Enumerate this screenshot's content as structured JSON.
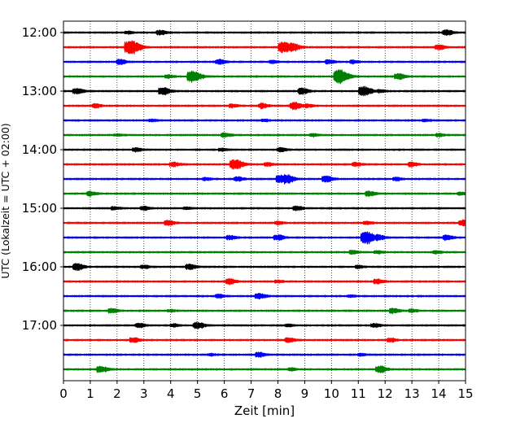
{
  "chart_data": {
    "type": "line",
    "title": "",
    "xlabel": "Zeit  [min]",
    "ylabel": "UTC (Lokalzeit = UTC + 02:00)",
    "xlim": [
      0,
      15
    ],
    "x_ticks": [
      0,
      1,
      2,
      3,
      4,
      5,
      6,
      7,
      8,
      9,
      10,
      11,
      12,
      13,
      14,
      15
    ],
    "y_tick_labels": [
      "12:00",
      "13:00",
      "14:00",
      "15:00",
      "16:00",
      "17:00"
    ],
    "grid": "vertical dotted",
    "legend": "none",
    "trace_colors": [
      "#000000",
      "#ff0000",
      "#0000ff",
      "#008000"
    ],
    "trace_interval_min": 15,
    "series": [
      {
        "start": "12:00",
        "color": "#000000",
        "events": [
          [
            3.6,
            0.7
          ],
          [
            14.3,
            0.9
          ],
          [
            2.4,
            0.4
          ]
        ]
      },
      {
        "start": "12:15",
        "color": "#ff0000",
        "events": [
          [
            2.5,
            2.4
          ],
          [
            8.2,
            1.8
          ],
          [
            8.6,
            0.9
          ],
          [
            14.0,
            0.7
          ]
        ]
      },
      {
        "start": "12:30",
        "color": "#0000ff",
        "events": [
          [
            2.1,
            0.8
          ],
          [
            5.8,
            0.8
          ],
          [
            9.9,
            0.6
          ],
          [
            10.8,
            0.5
          ],
          [
            7.8,
            0.4
          ]
        ]
      },
      {
        "start": "12:45",
        "color": "#008000",
        "events": [
          [
            4.8,
            1.9
          ],
          [
            10.3,
            2.3
          ],
          [
            12.5,
            0.9
          ],
          [
            3.9,
            0.5
          ]
        ]
      },
      {
        "start": "13:00",
        "color": "#000000",
        "events": [
          [
            0.5,
            0.9
          ],
          [
            3.7,
            1.2
          ],
          [
            8.9,
            1.0
          ],
          [
            11.2,
            1.6
          ],
          [
            11.8,
            0.4
          ]
        ]
      },
      {
        "start": "13:15",
        "color": "#ff0000",
        "events": [
          [
            1.2,
            0.6
          ],
          [
            6.3,
            0.5
          ],
          [
            7.4,
            0.8
          ],
          [
            8.6,
            1.2
          ],
          [
            9.1,
            0.5
          ]
        ]
      },
      {
        "start": "13:30",
        "color": "#0000ff",
        "events": [
          [
            3.3,
            0.3
          ],
          [
            7.5,
            0.3
          ],
          [
            13.5,
            0.3
          ]
        ]
      },
      {
        "start": "13:45",
        "color": "#008000",
        "events": [
          [
            6.0,
            0.6
          ],
          [
            9.3,
            0.4
          ],
          [
            14.0,
            0.5
          ],
          [
            2.0,
            0.3
          ]
        ]
      },
      {
        "start": "14:00",
        "color": "#000000",
        "events": [
          [
            2.7,
            0.6
          ],
          [
            5.9,
            0.4
          ],
          [
            8.1,
            0.6
          ]
        ]
      },
      {
        "start": "14:15",
        "color": "#ff0000",
        "events": [
          [
            4.1,
            0.7
          ],
          [
            6.4,
            1.6
          ],
          [
            7.6,
            0.5
          ],
          [
            10.9,
            0.6
          ],
          [
            13.0,
            0.7
          ]
        ]
      },
      {
        "start": "14:30",
        "color": "#0000ff",
        "events": [
          [
            6.5,
            0.7
          ],
          [
            8.1,
            1.3
          ],
          [
            8.4,
            0.9
          ],
          [
            9.8,
            1.0
          ],
          [
            12.4,
            0.5
          ],
          [
            5.3,
            0.4
          ]
        ]
      },
      {
        "start": "14:45",
        "color": "#008000",
        "events": [
          [
            1.0,
            0.7
          ],
          [
            11.4,
            0.8
          ],
          [
            14.8,
            0.4
          ]
        ]
      },
      {
        "start": "15:00",
        "color": "#000000",
        "events": [
          [
            1.9,
            0.5
          ],
          [
            3.0,
            0.6
          ],
          [
            8.7,
            0.7
          ],
          [
            4.6,
            0.3
          ]
        ]
      },
      {
        "start": "15:15",
        "color": "#ff0000",
        "events": [
          [
            3.9,
            0.8
          ],
          [
            8.0,
            0.5
          ],
          [
            11.3,
            0.5
          ],
          [
            14.9,
            0.9
          ]
        ]
      },
      {
        "start": "15:30",
        "color": "#0000ff",
        "events": [
          [
            6.2,
            0.7
          ],
          [
            8.0,
            0.9
          ],
          [
            11.3,
            2.0
          ],
          [
            11.8,
            0.6
          ],
          [
            14.3,
            0.8
          ]
        ]
      },
      {
        "start": "15:45",
        "color": "#008000",
        "events": [
          [
            10.8,
            0.6
          ],
          [
            11.7,
            0.5
          ],
          [
            13.9,
            0.4
          ]
        ]
      },
      {
        "start": "16:00",
        "color": "#000000",
        "events": [
          [
            0.5,
            1.1
          ],
          [
            3.0,
            0.5
          ],
          [
            4.7,
            0.9
          ],
          [
            11.0,
            0.4
          ]
        ]
      },
      {
        "start": "16:15",
        "color": "#ff0000",
        "events": [
          [
            6.2,
            0.9
          ],
          [
            11.7,
            0.8
          ],
          [
            8.0,
            0.4
          ]
        ]
      },
      {
        "start": "16:30",
        "color": "#0000ff",
        "events": [
          [
            5.8,
            0.6
          ],
          [
            7.3,
            0.9
          ],
          [
            10.7,
            0.3
          ]
        ]
      },
      {
        "start": "16:45",
        "color": "#008000",
        "events": [
          [
            1.8,
            0.7
          ],
          [
            12.3,
            0.8
          ],
          [
            13.0,
            0.5
          ],
          [
            4.0,
            0.3
          ]
        ]
      },
      {
        "start": "17:00",
        "color": "#000000",
        "events": [
          [
            2.8,
            0.7
          ],
          [
            4.1,
            0.5
          ],
          [
            5.0,
            1.0
          ],
          [
            11.6,
            0.6
          ],
          [
            8.4,
            0.3
          ]
        ]
      },
      {
        "start": "17:15",
        "color": "#ff0000",
        "events": [
          [
            2.6,
            0.8
          ],
          [
            8.4,
            0.7
          ],
          [
            12.2,
            0.6
          ]
        ]
      },
      {
        "start": "17:30",
        "color": "#0000ff",
        "events": [
          [
            7.3,
            0.8
          ],
          [
            5.5,
            0.3
          ],
          [
            11.1,
            0.3
          ]
        ]
      },
      {
        "start": "17:45",
        "color": "#008000",
        "events": [
          [
            1.4,
            1.0
          ],
          [
            11.8,
            1.1
          ],
          [
            8.5,
            0.4
          ]
        ]
      }
    ]
  }
}
